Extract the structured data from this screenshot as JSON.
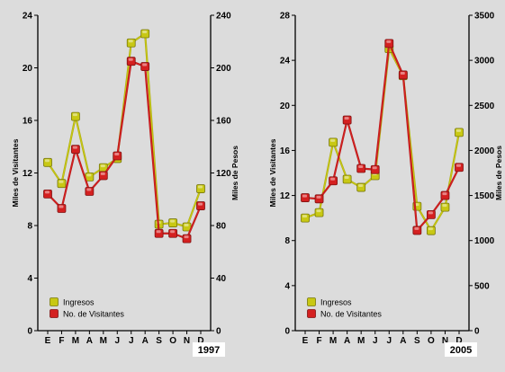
{
  "chart_data": [
    {
      "type": "line",
      "year_label": "1997",
      "categories": [
        "E",
        "F",
        "M",
        "A",
        "M",
        "J",
        "J",
        "A",
        "S",
        "O",
        "N",
        "D"
      ],
      "ylabel_left": "Miles de Visitantes",
      "ylabel_right": "Miles de Pesos",
      "ylim_left": [
        0,
        24
      ],
      "ylim_right": [
        0,
        240
      ],
      "yticks_left": [
        0,
        4,
        8,
        12,
        16,
        20,
        24
      ],
      "yticks_right": [
        0,
        40,
        80,
        120,
        160,
        200,
        240
      ],
      "grid": false,
      "legend_position": "bottom-left",
      "series": [
        {
          "name": "Ingresos",
          "axis": "right",
          "color": "#c8c814",
          "values": [
            128,
            112,
            163,
            117,
            124,
            131,
            219,
            226,
            81,
            82,
            79,
            108
          ]
        },
        {
          "name": "No. de Visitantes",
          "axis": "left",
          "color": "#d42020",
          "values": [
            10.4,
            9.3,
            13.8,
            10.6,
            11.8,
            13.3,
            20.5,
            20.1,
            7.4,
            7.4,
            7.0,
            9.5
          ]
        }
      ]
    },
    {
      "type": "line",
      "year_label": "2005",
      "categories": [
        "E",
        "F",
        "M",
        "A",
        "M",
        "J",
        "J",
        "A",
        "S",
        "O",
        "N",
        "D"
      ],
      "ylabel_left": "Miles de Visitantes",
      "ylabel_right": "Miles de Pesos",
      "ylim_left": [
        0,
        28
      ],
      "ylim_right": [
        0,
        3500
      ],
      "yticks_left": [
        0,
        4,
        8,
        12,
        16,
        20,
        24,
        28
      ],
      "yticks_right": [
        0,
        500,
        1000,
        1500,
        2000,
        2500,
        3000,
        3500
      ],
      "grid": false,
      "legend_position": "bottom-left",
      "series": [
        {
          "name": "Ingresos",
          "axis": "right",
          "color": "#c8c814",
          "values": [
            1250,
            1310,
            2090,
            1680,
            1590,
            1720,
            3130,
            2830,
            1380,
            1110,
            1370,
            2200
          ]
        },
        {
          "name": "No. de Visitantes",
          "axis": "left",
          "color": "#d42020",
          "values": [
            11.8,
            11.7,
            13.3,
            18.7,
            14.4,
            14.3,
            25.5,
            22.7,
            8.9,
            10.3,
            12.0,
            14.5
          ]
        }
      ]
    }
  ]
}
